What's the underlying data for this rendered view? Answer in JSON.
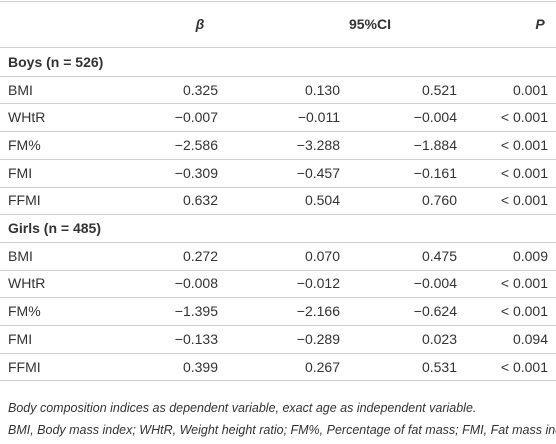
{
  "table": {
    "header": {
      "beta": "β",
      "ci": "95%CI",
      "p": "P"
    },
    "groups": [
      {
        "label": "Boys (n = 526)",
        "rows": [
          {
            "name": "BMI",
            "values": [
              "0.325",
              "0.130",
              "0.521",
              "0.001"
            ]
          },
          {
            "name": "WHtR",
            "values": [
              "−0.007",
              "−0.011",
              "−0.004",
              "< 0.001"
            ]
          },
          {
            "name": "FM%",
            "values": [
              "−2.586",
              "−3.288",
              "−1.884",
              "< 0.001"
            ]
          },
          {
            "name": "FMI",
            "values": [
              "−0.309",
              "−0.457",
              "−0.161",
              "< 0.001"
            ]
          },
          {
            "name": "FFMI",
            "values": [
              "0.632",
              "0.504",
              "0.760",
              "< 0.001"
            ]
          }
        ]
      },
      {
        "label": "Girls (n = 485)",
        "rows": [
          {
            "name": "BMI",
            "values": [
              "0.272",
              "0.070",
              "0.475",
              "0.009"
            ]
          },
          {
            "name": "WHtR",
            "values": [
              "−0.008",
              "−0.012",
              "−0.004",
              "< 0.001"
            ]
          },
          {
            "name": "FM%",
            "values": [
              "−1.395",
              "−2.166",
              "−0.624",
              "< 0.001"
            ]
          },
          {
            "name": "FMI",
            "values": [
              "−0.133",
              "−0.289",
              "0.023",
              "0.094"
            ]
          },
          {
            "name": "FFMI",
            "values": [
              "0.399",
              "0.267",
              "0.531",
              "< 0.001"
            ]
          }
        ]
      }
    ],
    "footnote": [
      "Body composition indices as dependent variable, exact age as independent variable.",
      "BMI, Body mass index; WHtR, Weight height ratio; FM%, Percentage of fat mass; FMI, Fat mass index; FFMI, Fat-free mass index."
    ]
  }
}
